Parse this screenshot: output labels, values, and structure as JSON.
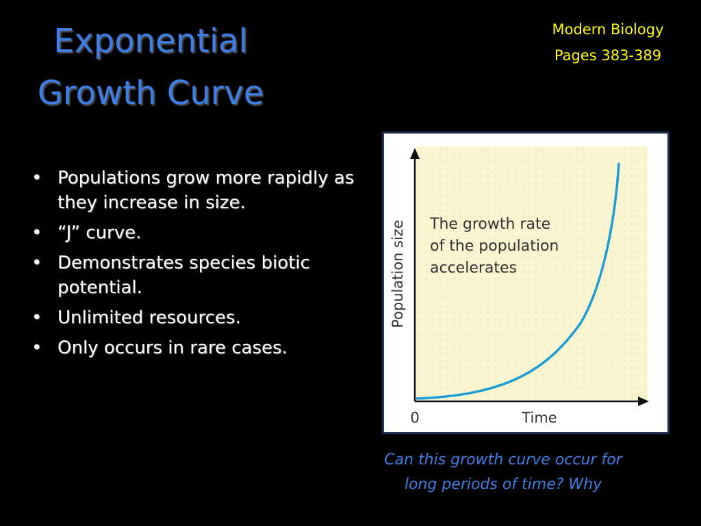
{
  "header": {
    "title": [
      "Exponential",
      "Growth Curve"
    ],
    "reference": [
      "Modern Biology",
      "Pages 383-389"
    ]
  },
  "bullets": [
    "Populations grow more rapidly as they increase in size.",
    "“J” curve.",
    "Demonstrates species biotic potential.",
    "Unlimited resources.",
    "Only occurs in rare cases."
  ],
  "figure": {
    "y_label": "Population size",
    "x_label": "Time",
    "origin_label": "0",
    "annotation": [
      "The growth rate",
      "of the population",
      "accelerates"
    ]
  },
  "caption": [
    "Can this growth curve occur for",
    "long periods of time?  Why"
  ]
}
